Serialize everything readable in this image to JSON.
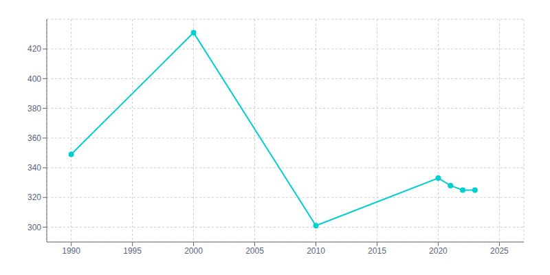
{
  "chart_data": {
    "type": "line",
    "x": [
      1990,
      2000,
      2010,
      2020,
      2021,
      2022,
      2023
    ],
    "values": [
      349,
      431,
      301,
      333,
      328,
      325,
      325
    ],
    "color": "#00CED1",
    "marker": "circle",
    "xlim": [
      1988,
      2027
    ],
    "ylim": [
      290,
      440
    ],
    "xticks": [
      1990,
      1995,
      2000,
      2005,
      2010,
      2015,
      2020,
      2025
    ],
    "yticks": [
      300,
      320,
      340,
      360,
      380,
      400,
      420
    ],
    "grid": true
  }
}
